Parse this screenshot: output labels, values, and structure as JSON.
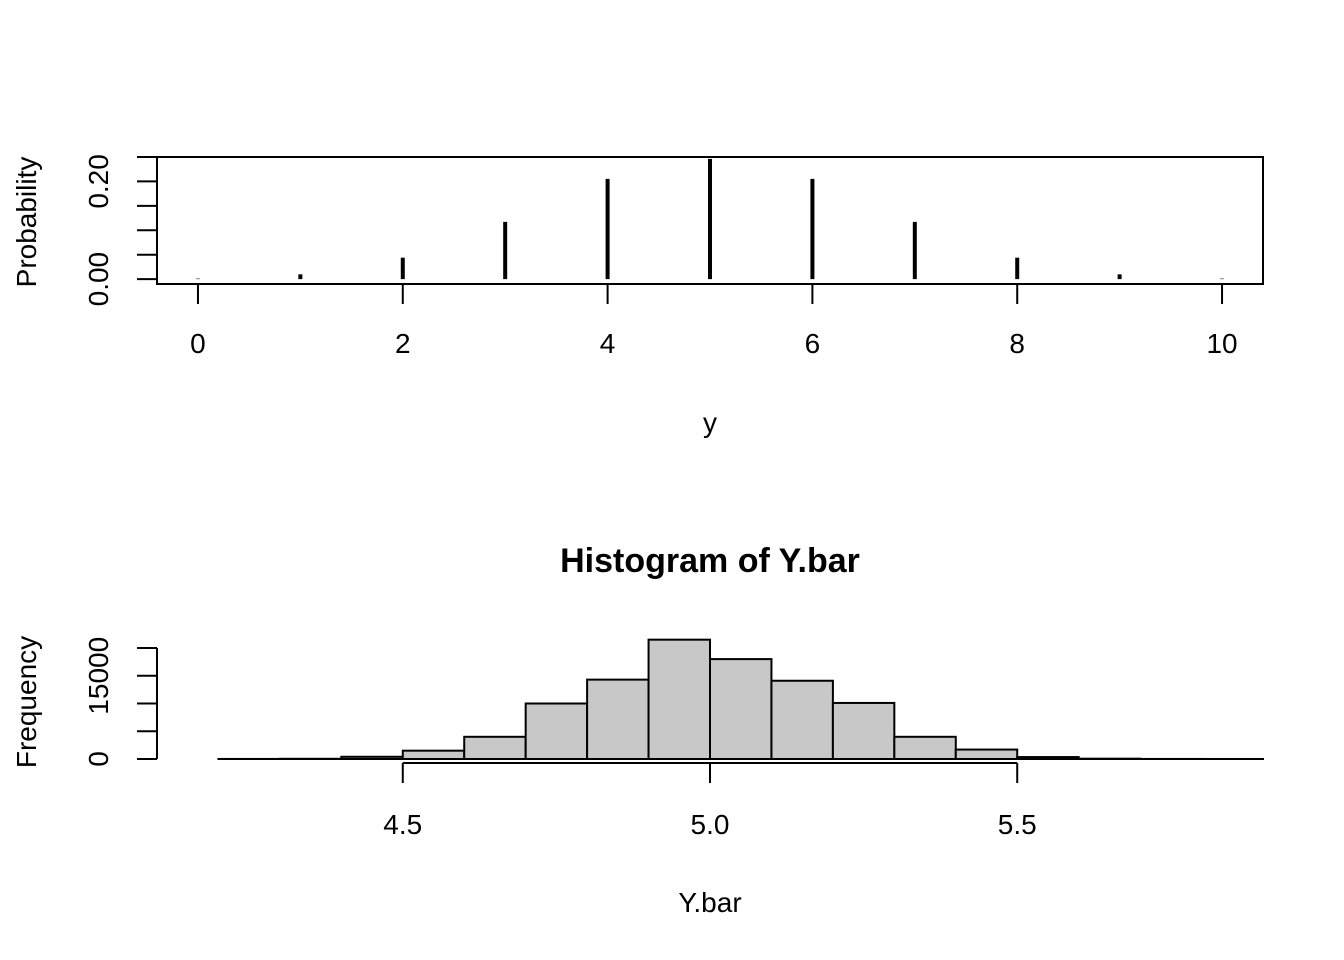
{
  "chart_data": [
    {
      "type": "bar",
      "subtype": "spike",
      "x": [
        0,
        1,
        2,
        3,
        4,
        5,
        6,
        7,
        8,
        9,
        10
      ],
      "values": [
        0.001,
        0.0098,
        0.0439,
        0.1172,
        0.2051,
        0.2461,
        0.2051,
        0.1172,
        0.0439,
        0.0098,
        0.001
      ],
      "title": "",
      "xlabel": "y",
      "ylabel": "Probability",
      "xlim": [
        -0.4,
        10.4
      ],
      "ylim": [
        -0.01,
        0.25
      ],
      "xticks": [
        "0",
        "2",
        "4",
        "6",
        "8",
        "10"
      ],
      "yticks": [
        "0.00",
        "0.20"
      ],
      "yticks_unlabeled": [
        0.05,
        0.1,
        0.15,
        0.25
      ],
      "grid": false,
      "legend": "none",
      "color": "#000000"
    },
    {
      "type": "bar",
      "subtype": "histogram",
      "bins": [
        [
          4.2,
          4.3
        ],
        [
          4.3,
          4.4
        ],
        [
          4.4,
          4.5
        ],
        [
          4.5,
          4.6
        ],
        [
          4.6,
          4.7
        ],
        [
          4.7,
          4.8
        ],
        [
          4.8,
          4.9
        ],
        [
          4.9,
          5.0
        ],
        [
          5.0,
          5.1
        ],
        [
          5.1,
          5.2
        ],
        [
          5.2,
          5.3
        ],
        [
          5.3,
          5.4
        ],
        [
          5.4,
          5.5
        ],
        [
          5.5,
          5.6
        ],
        [
          5.6,
          5.7
        ],
        [
          5.7,
          5.8
        ],
        [
          5.8,
          5.9
        ]
      ],
      "values": [
        10,
        40,
        400,
        1500,
        4000,
        10000,
        14300,
        21500,
        18000,
        14100,
        10100,
        4000,
        1700,
        350,
        60,
        10,
        5
      ],
      "title": "Histogram of Y.bar",
      "xlabel": "Y.bar",
      "ylabel": "Frequency",
      "xlim": [
        4.1,
        5.9
      ],
      "ylim": [
        0,
        20000
      ],
      "xticks": [
        "4.5",
        "5.0",
        "5.5"
      ],
      "yticks": [
        "0",
        "15000"
      ],
      "yticks_unlabeled": [
        5000,
        10000,
        20000
      ],
      "grid": false,
      "legend": "none",
      "fill_color": "#c8c8c8",
      "edge_color": "#000000"
    }
  ]
}
